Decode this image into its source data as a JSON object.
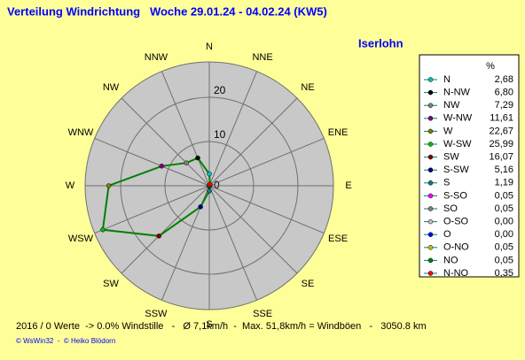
{
  "chart_data": {
    "type": "radar",
    "title": "Verteilung Windrichtung   Woche 29.01.24 - 04.02.24 (KW5)",
    "location": "Iserlohn",
    "categories": [
      "N",
      "NNW",
      "NW",
      "WNW",
      "W",
      "WSW",
      "SW",
      "SSW",
      "S",
      "SSE",
      "SE",
      "ESE",
      "E",
      "ENE",
      "NE",
      "NNE"
    ],
    "series": [
      {
        "color": "#008000",
        "values": [
          2.68,
          6.8,
          7.29,
          11.61,
          22.67,
          25.99,
          16.07,
          5.16,
          1.19,
          0.05,
          0.05,
          0.0,
          0.0,
          0.05,
          0.05,
          0.35
        ],
        "value_labels": [
          "2,68",
          "6,80",
          "7,29",
          "11,61",
          "22,67",
          "25,99",
          "16,07",
          "5,16",
          "1,19",
          "0,05",
          "0,05",
          "0,00",
          "0,00",
          "0,05",
          "0,05",
          "0,35"
        ]
      }
    ],
    "legend": {
      "title": "%",
      "labels": [
        "N",
        "N-NW",
        "NW",
        "W-NW",
        "W",
        "W-SW",
        "SW",
        "S-SW",
        "S",
        "S-SO",
        "SO",
        "O-SO",
        "O",
        "O-NO",
        "NO",
        "N-NO"
      ],
      "colors": [
        "#00c0c0",
        "#000000",
        "#808080",
        "#800080",
        "#808000",
        "#00c000",
        "#800000",
        "#000080",
        "#008080",
        "#ff00ff",
        "#808080",
        "#c0c0c0",
        "#0000ff",
        "#c0c000",
        "#008000",
        "#ff0000"
      ]
    },
    "rlim": [
      0,
      28
    ],
    "rticks": [
      0,
      10,
      20
    ],
    "footer": "2016 / 0 Werte  -> 0.0% Windstille   -   Ø 7,1km/h  -  Max. 51,8km/h = Windböen   -   3050.8 km",
    "credits": "© WsWin32  -  © Heiko Blödorn"
  }
}
